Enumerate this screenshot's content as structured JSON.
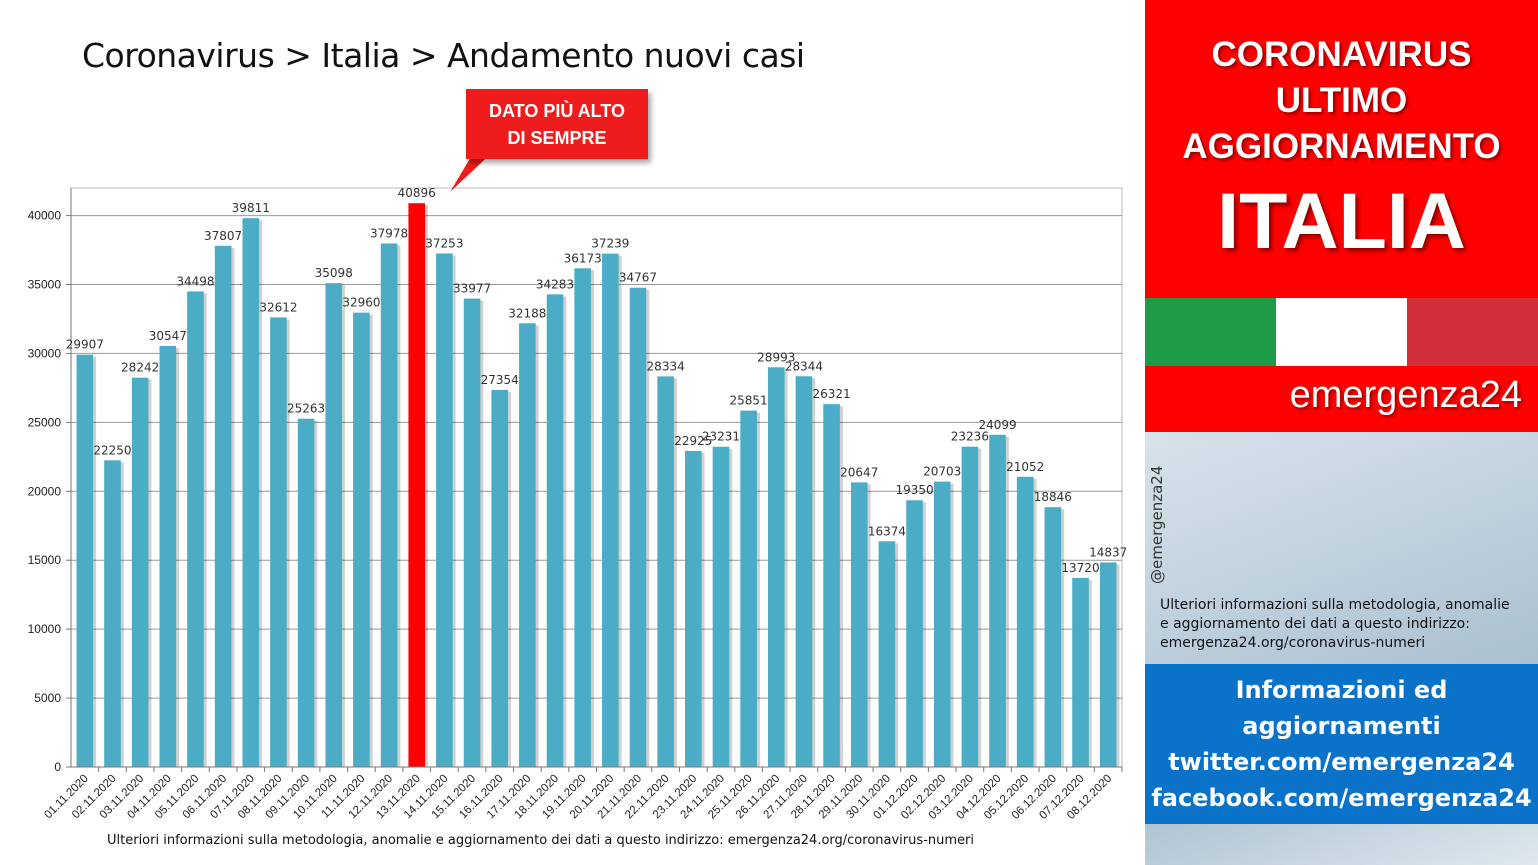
{
  "page": {
    "title": "Coronavirus > Italia > Andamento nuovi casi",
    "callout": {
      "line1": "DATO PIÙ ALTO",
      "line2": "DI SEMPRE"
    },
    "footnote": "Ulteriori informazioni sulla metodologia, anomalie e aggiornamento dei dati a questo indirizzo: emergenza24.org/coronavirus-numeri"
  },
  "sidebar": {
    "header": {
      "line1": "CORONAVIRUS",
      "line2": "ULTIMO",
      "line3": "AGGIORNAMENTO",
      "country": "ITALIA"
    },
    "flag_colors": [
      "#1e9b46",
      "#ffffff",
      "#d02f3a"
    ],
    "brand": "emergenza24",
    "handle": "@emergenza24",
    "info": {
      "line1": "Ulteriori informazioni sulla metodologia, anomalie",
      "line2": "e aggiornamento dei dati a questo indirizzo:",
      "line3": "emergenza24.org/coronavirus-numeri"
    },
    "social": {
      "line1": "Informazioni ed",
      "line2": "aggiornamenti",
      "line3": "twitter.com/emergenza24",
      "line4": "facebook.com/emergenza24"
    }
  },
  "colors": {
    "bar": "#4bacc6",
    "highlight_bar": "#ff0000",
    "header_red": "#ff0000",
    "social_blue": "#0a72c8"
  },
  "chart_data": {
    "type": "bar",
    "categories": [
      "01.11.2020",
      "02.11.2020",
      "03.11.2020",
      "04.11.2020",
      "05.11.2020",
      "06.11.2020",
      "07.11.2020",
      "08.11.2020",
      "09.11.2020",
      "10.11.2020",
      "11.11.2020",
      "12.11.2020",
      "13.11.2020",
      "14.11.2020",
      "15.11.2020",
      "16.11.2020",
      "17.11.2020",
      "18.11.2020",
      "19.11.2020",
      "20.11.2020",
      "21.11.2020",
      "22.11.2020",
      "23.11.2020",
      "24.11.2020",
      "25.11.2020",
      "26.11.2020",
      "27.11.2020",
      "28.11.2020",
      "29.11.2020",
      "30.11.2020",
      "01.12.2020",
      "02.12.2020",
      "03.12.2020",
      "04.12.2020",
      "05.12.2020",
      "06.12.2020",
      "07.12.2020",
      "08.12.2020"
    ],
    "values": [
      29907,
      22250,
      28242,
      30547,
      34498,
      37807,
      39811,
      32612,
      25263,
      35098,
      32960,
      37978,
      40896,
      37253,
      33977,
      27354,
      32188,
      34283,
      36173,
      37239,
      34767,
      28334,
      22925,
      23231,
      25851,
      28993,
      28344,
      26321,
      20647,
      16374,
      19350,
      20703,
      23236,
      24099,
      21052,
      18846,
      13720,
      14837
    ],
    "highlight_category": "13.11.2020",
    "ylim": [
      0,
      42000
    ],
    "yticks": [
      0,
      5000,
      10000,
      15000,
      20000,
      25000,
      30000,
      35000,
      40000
    ],
    "grid": true,
    "title": "",
    "xlabel": "",
    "ylabel": ""
  }
}
